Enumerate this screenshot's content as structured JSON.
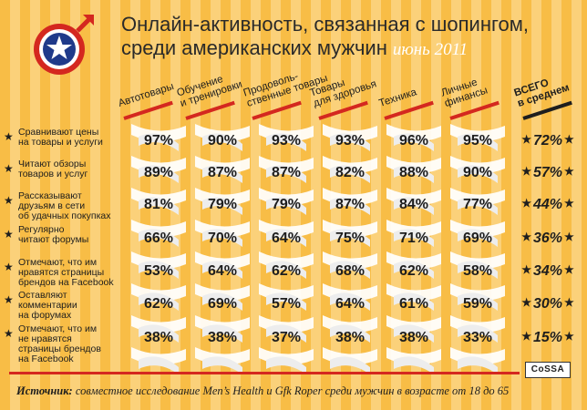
{
  "title_line1": "Онлайн-активность, связанная с шопингом,",
  "title_line2": "среди американских мужчин",
  "title_date": "июнь 2011",
  "columns": [
    {
      "line1": "Автотовары",
      "line2": ""
    },
    {
      "line1": "Обучение",
      "line2": "и тренировки"
    },
    {
      "line1": "Продоволь-",
      "line2": "ственные товары"
    },
    {
      "line1": "Товары",
      "line2": "для здоровья"
    },
    {
      "line1": "Техника",
      "line2": ""
    },
    {
      "line1": "Личные",
      "line2": "финансы"
    },
    {
      "line1": "ВСЕГО",
      "line2": "в среднем"
    }
  ],
  "rows": [
    {
      "label": [
        "Сравнивают цены",
        "на товары и услуги"
      ],
      "values": [
        "97%",
        "90%",
        "93%",
        "93%",
        "96%",
        "95%"
      ],
      "total": "72%"
    },
    {
      "label": [
        "Читают обзоры",
        "товаров и услуг"
      ],
      "values": [
        "89%",
        "87%",
        "87%",
        "82%",
        "88%",
        "90%"
      ],
      "total": "57%"
    },
    {
      "label": [
        "Рассказывают",
        "друзьям в сети",
        "об удачных покупках"
      ],
      "values": [
        "81%",
        "79%",
        "79%",
        "87%",
        "84%",
        "77%"
      ],
      "total": "44%"
    },
    {
      "label": [
        "Регулярно",
        "читают форумы"
      ],
      "values": [
        "66%",
        "70%",
        "64%",
        "75%",
        "71%",
        "69%"
      ],
      "total": "36%"
    },
    {
      "label": [
        "Отмечают, что им",
        "нравятся страницы",
        "брендов на Facebook"
      ],
      "values": [
        "53%",
        "64%",
        "62%",
        "68%",
        "62%",
        "58%"
      ],
      "total": "34%"
    },
    {
      "label": [
        "Оставляют",
        "комментарии",
        "на форумах"
      ],
      "values": [
        "62%",
        "69%",
        "57%",
        "64%",
        "61%",
        "59%"
      ],
      "total": "30%"
    },
    {
      "label": [
        "Отмечают, что им",
        "не нравятся",
        "страницы брендов",
        "на Facebook"
      ],
      "values": [
        "38%",
        "38%",
        "37%",
        "38%",
        "38%",
        "33%"
      ],
      "total": "15%"
    }
  ],
  "star_glyph": "★",
  "brand": "CoSSA",
  "source_label": "Источник:",
  "source_text": "совместное исследование Men’s Health и Gfk Roper среди мужчин в возрасте от 18 до 65",
  "colors": {
    "background": "#f8bd46",
    "stripe": "#fbd17a",
    "ribbon": "#ffffff",
    "accent_red": "#d4281f",
    "text": "#1e1e1e",
    "logo_blue": "#1f3a8a"
  }
}
